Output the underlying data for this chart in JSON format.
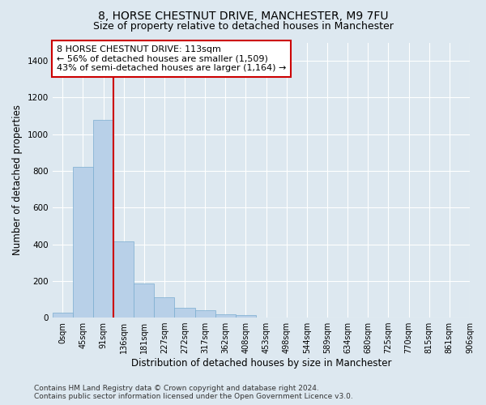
{
  "title": "8, HORSE CHESTNUT DRIVE, MANCHESTER, M9 7FU",
  "subtitle": "Size of property relative to detached houses in Manchester",
  "xlabel": "Distribution of detached houses by size in Manchester",
  "ylabel": "Number of detached properties",
  "bar_values": [
    25,
    820,
    1080,
    415,
    185,
    110,
    55,
    40,
    20,
    15,
    0,
    0,
    0,
    0,
    0,
    0,
    0,
    0,
    0,
    0
  ],
  "bar_color": "#b8d0e8",
  "bar_edge_color": "#7aadd0",
  "x_labels": [
    "0sqm",
    "45sqm",
    "91sqm",
    "136sqm",
    "181sqm",
    "227sqm",
    "272sqm",
    "317sqm",
    "362sqm",
    "408sqm",
    "453sqm",
    "498sqm",
    "544sqm",
    "589sqm",
    "634sqm",
    "680sqm",
    "725sqm",
    "770sqm",
    "815sqm",
    "861sqm",
    "906sqm"
  ],
  "ylim": [
    0,
    1500
  ],
  "yticks": [
    0,
    200,
    400,
    600,
    800,
    1000,
    1200,
    1400
  ],
  "property_line_x": 2.5,
  "annotation_text": "8 HORSE CHESTNUT DRIVE: 113sqm\n← 56% of detached houses are smaller (1,509)\n43% of semi-detached houses are larger (1,164) →",
  "annotation_box_color": "#ffffff",
  "annotation_box_edge_color": "#cc0000",
  "footer_line1": "Contains HM Land Registry data © Crown copyright and database right 2024.",
  "footer_line2": "Contains public sector information licensed under the Open Government Licence v3.0.",
  "background_color": "#dde8f0",
  "plot_bg_color": "#dde8f0",
  "grid_color": "#ffffff",
  "vline_color": "#cc0000",
  "title_fontsize": 10,
  "subtitle_fontsize": 9,
  "axis_label_fontsize": 8.5,
  "tick_fontsize": 7.5,
  "annotation_fontsize": 8,
  "footer_fontsize": 6.5
}
